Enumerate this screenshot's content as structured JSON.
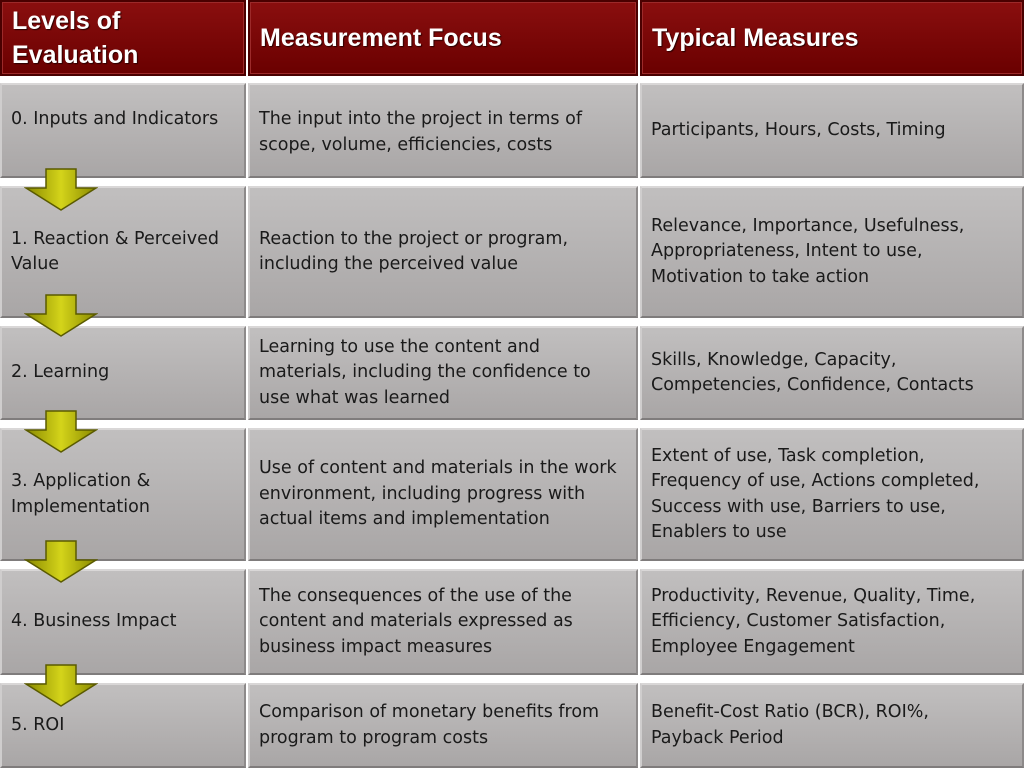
{
  "headers": {
    "levels": "Levels of\nEvaluation",
    "focus": "Measurement Focus",
    "measures": "Typical Measures"
  },
  "rows": [
    {
      "level": "0. Inputs and Indicators",
      "focus": "The input into the project in terms of\nscope, volume, efficiencies, costs",
      "measures": "Participants, Hours, Costs, Timing"
    },
    {
      "level": "1. Reaction & Perceived\nValue",
      "focus": "Reaction to the project or program,\nincluding the perceived value",
      "measures": "Relevance, Importance, Usefulness,\nAppropriateness, Intent to use,\nMotivation to take action"
    },
    {
      "level": "2. Learning",
      "focus": "Learning to use the content and\nmaterials, including the confidence to\nuse what was learned",
      "measures": "Skills, Knowledge, Capacity,\nCompetencies, Confidence, Contacts"
    },
    {
      "level": "3. Application &\nImplementation",
      "focus": "Use of content and materials in the work\nenvironment, including progress with\nactual items and implementation",
      "measures": "Extent of use, Task completion,\nFrequency of use, Actions completed,\nSuccess with use, Barriers to use,\nEnablers to use"
    },
    {
      "level": "4. Business Impact",
      "focus": "The consequences of the use of the\ncontent and materials expressed as\nbusiness impact measures",
      "measures": "Productivity, Revenue, Quality, Time,\nEfficiency, Customer Satisfaction,\nEmployee Engagement"
    },
    {
      "level": "5. ROI",
      "focus": "Comparison of monetary benefits from\nprogram to program costs",
      "measures": "Benefit-Cost Ratio (BCR), ROI%,\nPayback Period"
    }
  ],
  "colors": {
    "header": "#6f0000",
    "cell": "#b3b1b1",
    "arrow": "#b3b300"
  }
}
